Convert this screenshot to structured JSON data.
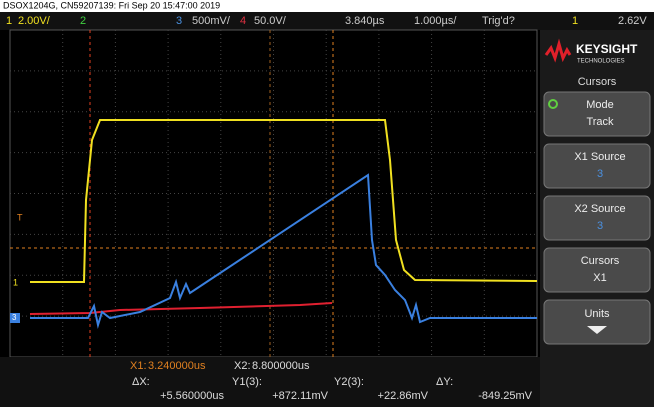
{
  "header": {
    "title": "DSOX1204G, CN59207139: Fri Sep 20 15:47:00 2019"
  },
  "status": {
    "ch1_num": "1",
    "ch1_scale": "2.00V/",
    "ch2_num": "2",
    "ch3_num": "3",
    "ch3_scale": "500mV/",
    "ch4_num": "4",
    "ch4_scale": "50.0V/",
    "time_delay": "3.840µs",
    "time_scale": "1.000µs/",
    "trigger_state": "Trig'd?",
    "trigger_source": "1",
    "trigger_level": "2.62V"
  },
  "markers": {
    "trigger": "T",
    "ch1": "1",
    "ch3": "3"
  },
  "menu": {
    "brand": "KEYSIGHT",
    "brand_sub": "TECHNOLOGIES",
    "title": "Cursors",
    "buttons": [
      {
        "label": "Mode",
        "value": "Track"
      },
      {
        "label": "X1 Source",
        "value": "3"
      },
      {
        "label": "X2 Source",
        "value": "3"
      },
      {
        "label": "Cursors",
        "value": "X1"
      },
      {
        "label": "Units"
      }
    ]
  },
  "readout": {
    "x1_label": "X1:",
    "x1": "3.240000us",
    "x2_label": "X2:",
    "x2": "8.800000us",
    "dx_label": "ΔX:",
    "dx": "+5.560000us",
    "y1_label": "Y1(3):",
    "y1": "+872.11mV",
    "y2_label": "Y2(3):",
    "y2": "+22.86mV",
    "dy_label": "ΔY:",
    "dy": "-849.25mV"
  }
}
